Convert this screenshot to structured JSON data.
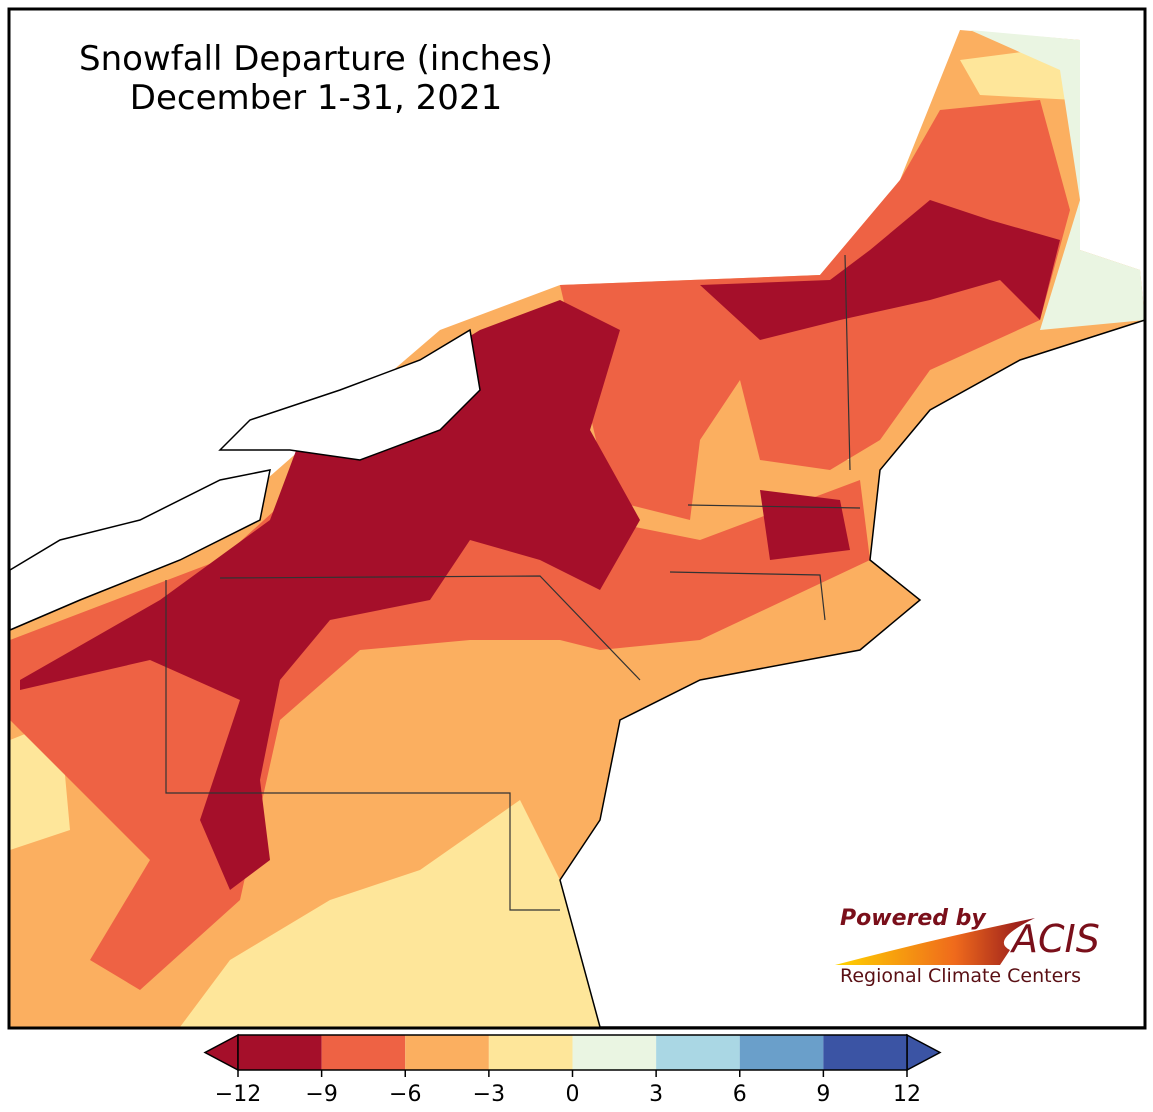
{
  "title": "Snowfall Departure (inches)",
  "subtitle": "December 1-31, 2021",
  "colorbar": {
    "ticks": [
      {
        "value": -12,
        "label": "−12"
      },
      {
        "value": -9,
        "label": "−9"
      },
      {
        "value": -6,
        "label": "−6"
      },
      {
        "value": -3,
        "label": "−3"
      },
      0,
      3,
      6,
      9,
      12
    ],
    "colors": [
      "#a50f2a",
      "#ee6244",
      "#fbaf60",
      "#fee69a",
      "#eaf5e2",
      "#aad7e4",
      "#6a9fca",
      "#3b54a4"
    ]
  },
  "logo": {
    "powered_by": "Powered by",
    "name": "ACIS",
    "tagline": "Regional Climate Centers"
  }
}
